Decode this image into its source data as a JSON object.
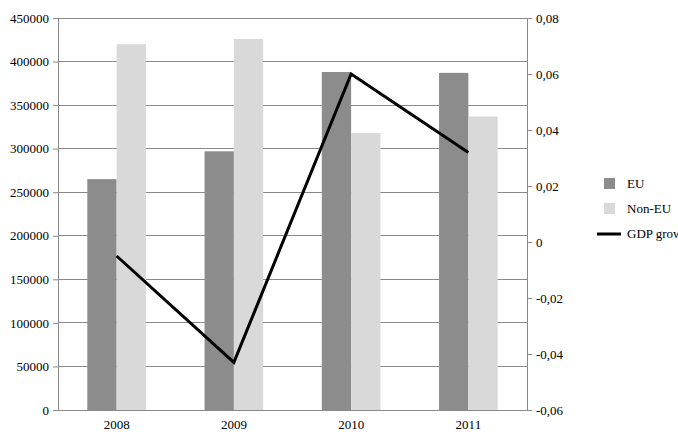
{
  "chart_data": {
    "type": "bar",
    "categories": [
      "2008",
      "2009",
      "2010",
      "2011"
    ],
    "series": [
      {
        "name": "EU",
        "color": "#8c8c8c",
        "type": "bar",
        "values": [
          265000,
          297000,
          388000,
          387000
        ]
      },
      {
        "name": "Non-EU",
        "color": "#d9d9d9",
        "type": "bar",
        "values": [
          420000,
          426000,
          318000,
          337000
        ]
      },
      {
        "name": "GDP growth",
        "color": "#000000",
        "type": "line",
        "axis": "y2",
        "values": [
          -0.005,
          -0.043,
          0.06,
          0.032
        ]
      }
    ],
    "ylim": [
      0,
      450000
    ],
    "yticks": [
      0,
      50000,
      100000,
      150000,
      200000,
      250000,
      300000,
      350000,
      400000,
      450000
    ],
    "y2lim": [
      -0.06,
      0.08
    ],
    "y2ticks": [
      {
        "value": -0.06,
        "label": "-0,06"
      },
      {
        "value": -0.04,
        "label": "-0,04"
      },
      {
        "value": -0.02,
        "label": "-0,02"
      },
      0,
      {
        "value": 0.02,
        "label": "0,02"
      },
      {
        "value": 0.04,
        "label": "0,04"
      },
      {
        "value": 0.06,
        "label": "0,06"
      },
      {
        "value": 0.08,
        "label": "0,08"
      }
    ],
    "grid": true,
    "legend": "right"
  }
}
